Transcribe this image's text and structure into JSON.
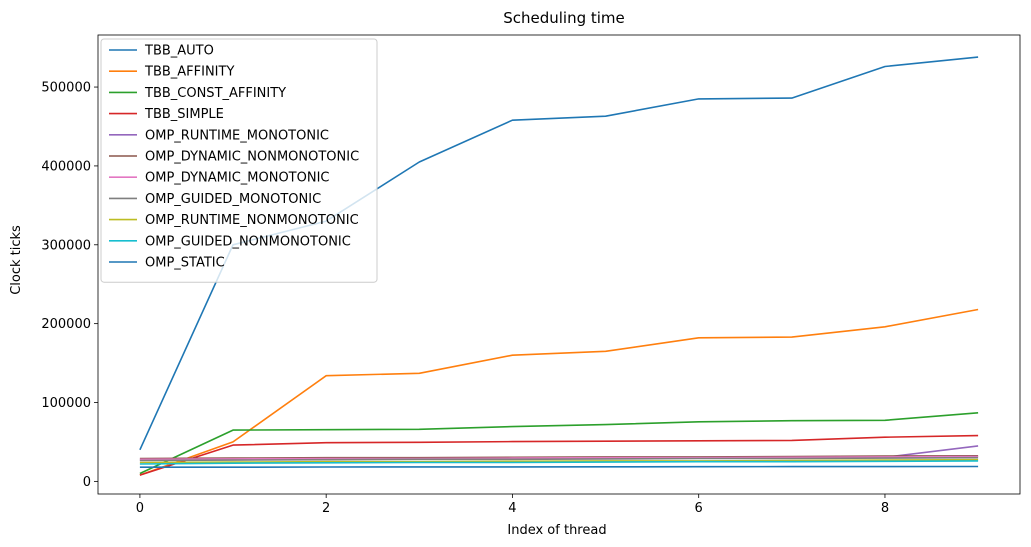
{
  "chart_data": {
    "type": "line",
    "title": "Scheduling time",
    "xlabel": "Index of thread",
    "ylabel": "Clock ticks",
    "xlim": [
      -0.45,
      9.45
    ],
    "ylim": [
      -16000,
      566000
    ],
    "xticks": [
      0,
      2,
      4,
      6,
      8
    ],
    "yticks": [
      0,
      100000,
      200000,
      300000,
      400000,
      500000
    ],
    "grid": false,
    "legend_position": "top-left",
    "x": [
      0,
      1,
      2,
      3,
      4,
      5,
      6,
      7,
      8,
      9
    ],
    "series": [
      {
        "name": "TBB_AUTO",
        "color": "#1f77b4",
        "values": [
          40000,
          300000,
          330000,
          405000,
          458000,
          463000,
          485000,
          486000,
          526000,
          538000
        ]
      },
      {
        "name": "TBB_AFFINITY",
        "color": "#ff7f0e",
        "values": [
          8000,
          50000,
          134000,
          137000,
          160000,
          165000,
          182000,
          183000,
          196000,
          218000
        ]
      },
      {
        "name": "TBB_CONST_AFFINITY",
        "color": "#2ca02c",
        "values": [
          10000,
          65000,
          65500,
          66000,
          69500,
          72000,
          75500,
          77000,
          77500,
          87000
        ]
      },
      {
        "name": "TBB_SIMPLE",
        "color": "#d62728",
        "values": [
          8000,
          46000,
          49000,
          49500,
          50500,
          51000,
          51500,
          52000,
          56000,
          58000
        ]
      },
      {
        "name": "OMP_RUNTIME_MONOTONIC",
        "color": "#9467bd",
        "values": [
          27000,
          27500,
          28000,
          28500,
          29000,
          29500,
          30000,
          30000,
          30500,
          45000
        ]
      },
      {
        "name": "OMP_DYNAMIC_NONMONOTONIC",
        "color": "#8c564b",
        "values": [
          29000,
          29500,
          30000,
          30000,
          30500,
          31000,
          31000,
          31500,
          32000,
          32500
        ]
      },
      {
        "name": "OMP_DYNAMIC_MONOTONIC",
        "color": "#e377c2",
        "values": [
          28000,
          28500,
          29000,
          29000,
          29500,
          30000,
          30000,
          30500,
          31000,
          31500
        ]
      },
      {
        "name": "OMP_GUIDED_MONOTONIC",
        "color": "#7f7f7f",
        "values": [
          26500,
          27000,
          27500,
          28000,
          28000,
          28500,
          29000,
          29000,
          29500,
          30000
        ]
      },
      {
        "name": "OMP_RUNTIME_NONMONOTONIC",
        "color": "#bcbd22",
        "values": [
          24000,
          24500,
          25000,
          25000,
          25500,
          26000,
          26000,
          26500,
          27000,
          27500
        ]
      },
      {
        "name": "OMP_GUIDED_NONMONOTONIC",
        "color": "#17becf",
        "values": [
          22000,
          23000,
          23500,
          24000,
          24000,
          24500,
          25000,
          25000,
          25500,
          26000
        ]
      },
      {
        "name": "OMP_STATIC",
        "color": "#1f77b4",
        "values": [
          18000,
          18000,
          18200,
          18300,
          18400,
          18500,
          18600,
          18700,
          18800,
          18900
        ]
      }
    ]
  }
}
